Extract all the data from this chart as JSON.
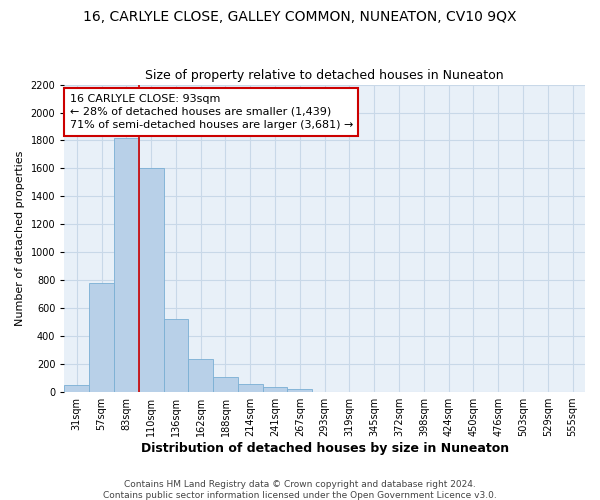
{
  "title": "16, CARLYLE CLOSE, GALLEY COMMON, NUNEATON, CV10 9QX",
  "subtitle": "Size of property relative to detached houses in Nuneaton",
  "xlabel": "Distribution of detached houses by size in Nuneaton",
  "ylabel": "Number of detached properties",
  "categories": [
    "31sqm",
    "57sqm",
    "83sqm",
    "110sqm",
    "136sqm",
    "162sqm",
    "188sqm",
    "214sqm",
    "241sqm",
    "267sqm",
    "293sqm",
    "319sqm",
    "345sqm",
    "372sqm",
    "398sqm",
    "424sqm",
    "450sqm",
    "476sqm",
    "503sqm",
    "529sqm",
    "555sqm"
  ],
  "values": [
    50,
    780,
    1820,
    1600,
    520,
    235,
    105,
    60,
    35,
    20,
    0,
    0,
    0,
    0,
    0,
    0,
    0,
    0,
    0,
    0,
    0
  ],
  "bar_color": "#b8d0e8",
  "bar_edge_color": "#7aafd4",
  "red_line_x": 2.5,
  "annotation_text": "16 CARLYLE CLOSE: 93sqm\n← 28% of detached houses are smaller (1,439)\n71% of semi-detached houses are larger (3,681) →",
  "annotation_box_color": "#ffffff",
  "annotation_box_edge_color": "#cc0000",
  "ylim": [
    0,
    2200
  ],
  "yticks": [
    0,
    200,
    400,
    600,
    800,
    1000,
    1200,
    1400,
    1600,
    1800,
    2000,
    2200
  ],
  "grid_color": "#c8d8e8",
  "bg_color": "#e8f0f8",
  "footer_text": "Contains HM Land Registry data © Crown copyright and database right 2024.\nContains public sector information licensed under the Open Government Licence v3.0.",
  "title_fontsize": 10,
  "subtitle_fontsize": 9,
  "ylabel_fontsize": 8,
  "xlabel_fontsize": 9,
  "tick_fontsize": 7,
  "annotation_fontsize": 8,
  "footer_fontsize": 6.5
}
